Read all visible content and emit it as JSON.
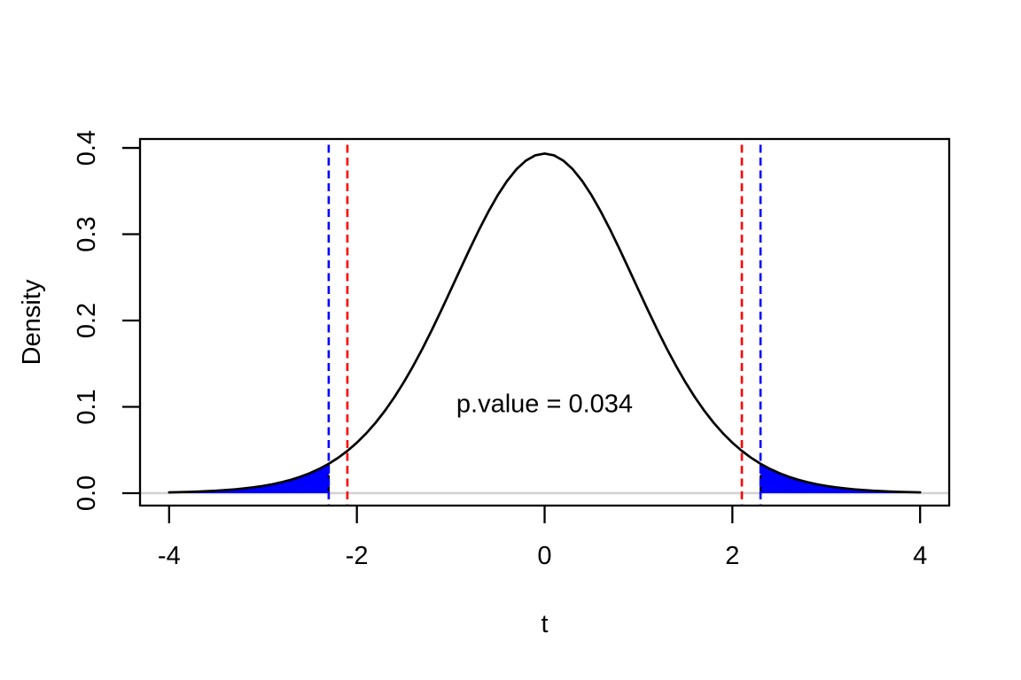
{
  "chart_data": {
    "type": "line",
    "title": "",
    "xlabel": "t",
    "ylabel": "Density",
    "grid": false,
    "legend": null,
    "xlim": [
      -4.31,
      4.31
    ],
    "ylim": [
      -0.0144,
      0.4103
    ],
    "x_ticks": {
      "values": [
        -4,
        -2,
        0,
        2,
        4
      ],
      "labels": [
        "-4",
        "-2",
        "0",
        "2",
        "4"
      ]
    },
    "y_ticks": {
      "values": [
        0,
        0.1,
        0.2,
        0.3,
        0.4
      ],
      "labels": [
        "0.0",
        "0.1",
        "0.2",
        "0.3",
        "0.4"
      ]
    },
    "annotation": {
      "text": "p.value = 0.034",
      "x": 0,
      "y": 0.103
    },
    "zero_line_y": 0,
    "critical_values": [
      -2.101,
      2.101
    ],
    "test_statistics": [
      -2.3,
      2.3
    ],
    "shaded_tails": [
      [
        -4,
        -2.3
      ],
      [
        2.3,
        4
      ]
    ],
    "curve": {
      "name": "t-distribution-density",
      "x": [
        -4.0,
        -3.9,
        -3.8,
        -3.7,
        -3.6,
        -3.5,
        -3.4,
        -3.3,
        -3.2,
        -3.1,
        -3.0,
        -2.9,
        -2.8,
        -2.7,
        -2.6,
        -2.5,
        -2.4,
        -2.3,
        -2.2,
        -2.1,
        -2.0,
        -1.9,
        -1.8,
        -1.7,
        -1.6,
        -1.5,
        -1.4,
        -1.3,
        -1.2,
        -1.1,
        -1.0,
        -0.9,
        -0.8,
        -0.7,
        -0.6,
        -0.5,
        -0.4,
        -0.3,
        -0.2,
        -0.1,
        0.0,
        0.1,
        0.2,
        0.3,
        0.4,
        0.5,
        0.6,
        0.7,
        0.8,
        0.9,
        1.0,
        1.1,
        1.2,
        1.3,
        1.4,
        1.5,
        1.6,
        1.7,
        1.8,
        1.9,
        2.0,
        2.1,
        2.2,
        2.3,
        2.4,
        2.5,
        2.6,
        2.7,
        2.8,
        2.9,
        3.0,
        3.1,
        3.2,
        3.3,
        3.4,
        3.5,
        3.6,
        3.7,
        3.8,
        3.9,
        4.0
      ],
      "y": [
        0.00093,
        0.00117,
        0.00146,
        0.00182,
        0.00228,
        0.00284,
        0.00353,
        0.00439,
        0.00546,
        0.00676,
        0.00836,
        0.01031,
        0.01268,
        0.01556,
        0.01903,
        0.02319,
        0.02815,
        0.03402,
        0.04095,
        0.04909,
        0.05847,
        0.0693,
        0.08166,
        0.09562,
        0.11124,
        0.12851,
        0.14738,
        0.16773,
        0.18939,
        0.21206,
        0.23541,
        0.25899,
        0.28232,
        0.30484,
        0.32597,
        0.34512,
        0.36172,
        0.37524,
        0.38523,
        0.39137,
        0.39344,
        0.39137,
        0.38523,
        0.37524,
        0.36172,
        0.34512,
        0.32597,
        0.30484,
        0.28232,
        0.25899,
        0.23541,
        0.21206,
        0.18939,
        0.16773,
        0.14738,
        0.12851,
        0.11124,
        0.09562,
        0.08166,
        0.0693,
        0.05847,
        0.04909,
        0.04095,
        0.03402,
        0.02815,
        0.02319,
        0.01903,
        0.01556,
        0.01268,
        0.01031,
        0.00836,
        0.00676,
        0.00546,
        0.00439,
        0.00353,
        0.00284,
        0.00228,
        0.00182,
        0.00146,
        0.00117,
        0.00093
      ]
    },
    "colors": {
      "curve": "#000000",
      "critical_line": "#FF0000",
      "statistic_line": "#0000FF",
      "tail_fill": "#0000FF",
      "tail_edge": "#000000",
      "zero_line": "#D3D3D3",
      "box": "#000000",
      "text": "#000000"
    }
  }
}
